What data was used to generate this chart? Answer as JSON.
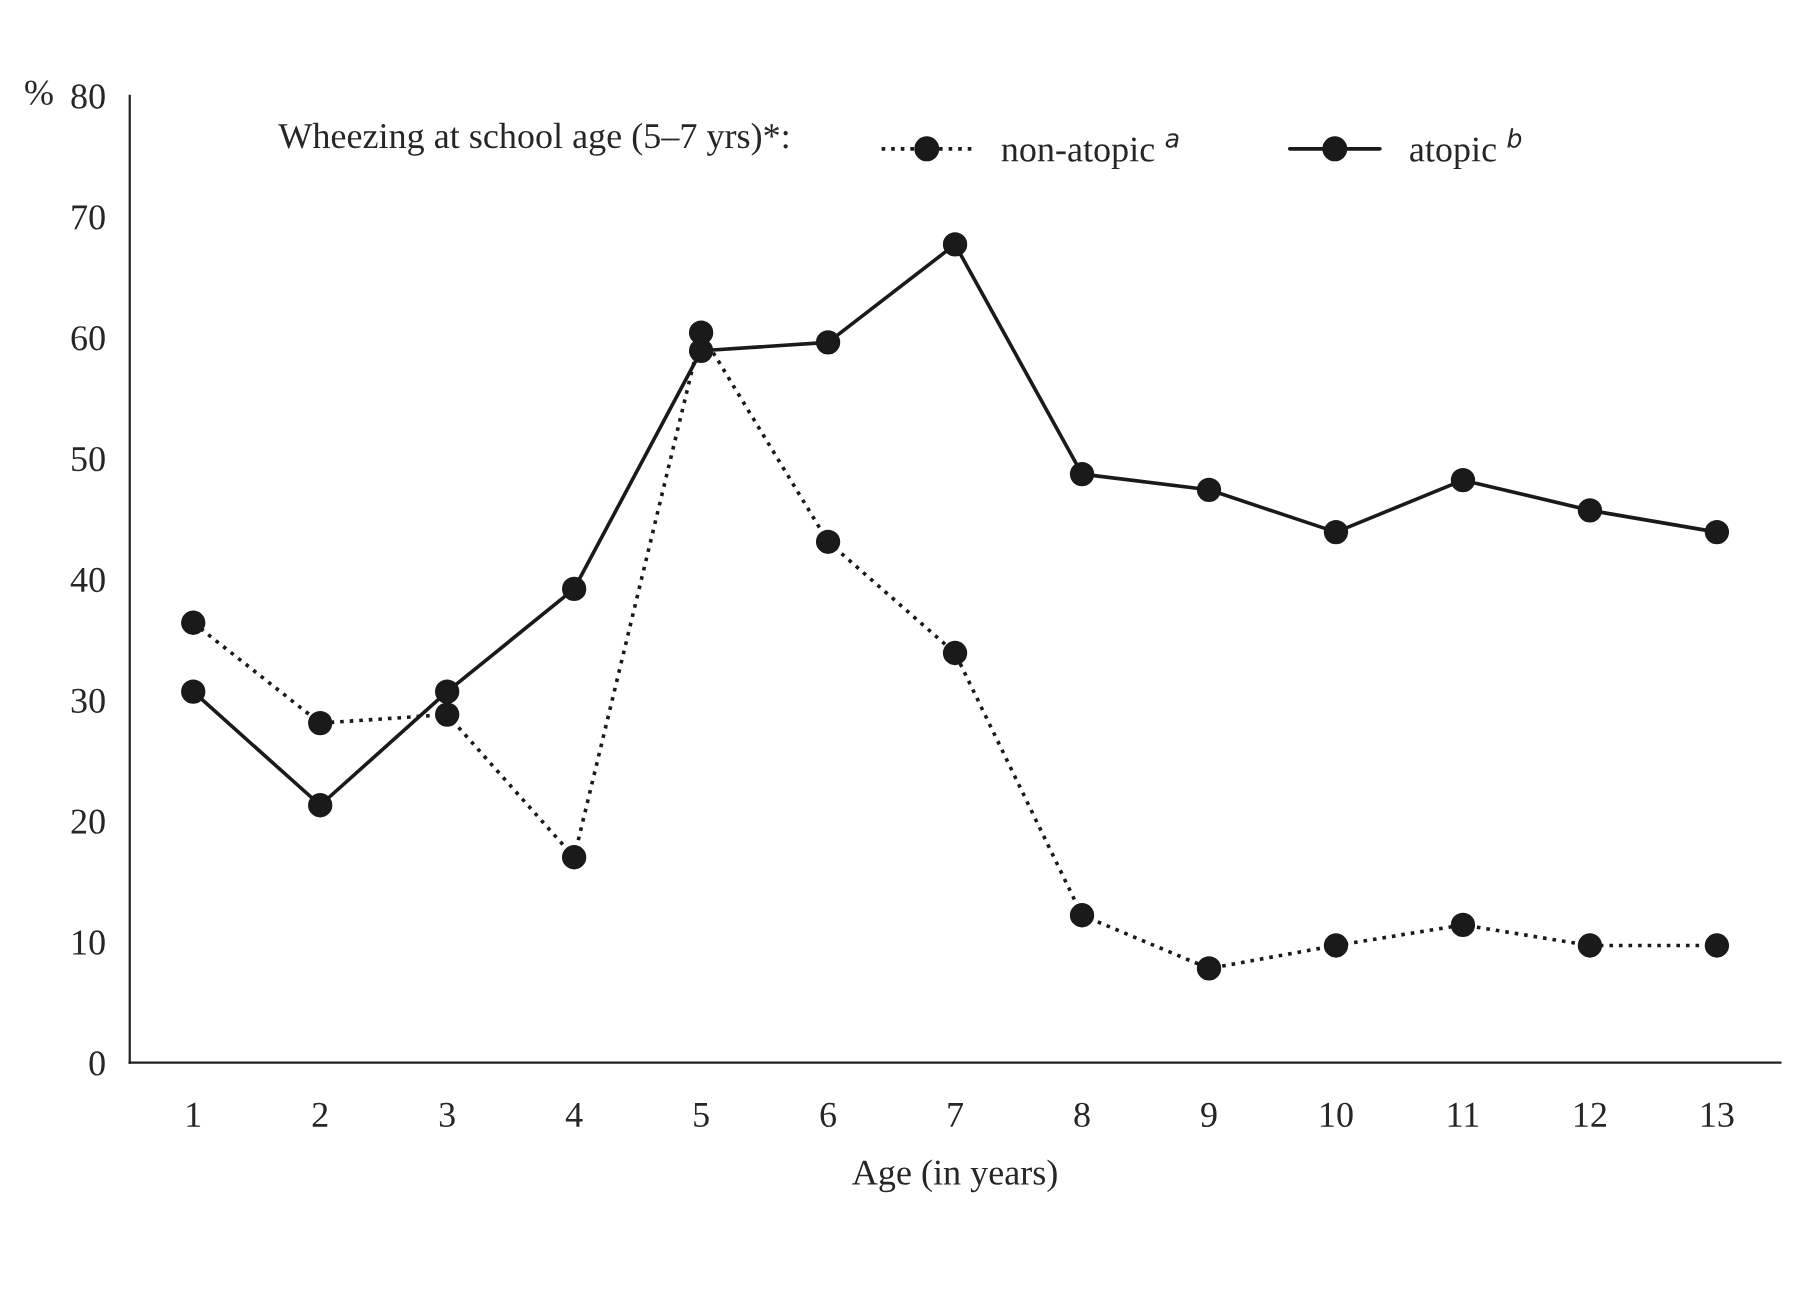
{
  "chart_data": {
    "type": "line",
    "xlabel": "Age (in years)",
    "ylabel": "%",
    "legend_title": "Wheezing at school age (5–7 yrs)*:",
    "categories": [
      "1",
      "2",
      "3",
      "4",
      "5",
      "6",
      "7",
      "8",
      "9",
      "10",
      "11",
      "12",
      "13"
    ],
    "series": [
      {
        "name": "non-atopic $^{a}$",
        "color": "#1a1a1a",
        "line_style": "dotted",
        "values": [
          36.4,
          28.1,
          28.8,
          17.0,
          60.4,
          43.1,
          33.9,
          12.2,
          7.8,
          9.7,
          11.4,
          9.7,
          9.7
        ]
      },
      {
        "name": "atopic $^{b}$",
        "color": "#1a1a1a",
        "line_style": "solid",
        "values": [
          30.7,
          21.3,
          30.7,
          39.2,
          58.9,
          59.6,
          67.7,
          48.7,
          47.4,
          43.9,
          48.2,
          45.7,
          43.9
        ]
      }
    ],
    "ylim": [
      0,
      80
    ],
    "yticks": [
      0,
      10,
      20,
      30,
      40,
      50,
      60,
      70,
      80
    ],
    "marker": "circle",
    "legend": "top",
    "grid": false
  }
}
